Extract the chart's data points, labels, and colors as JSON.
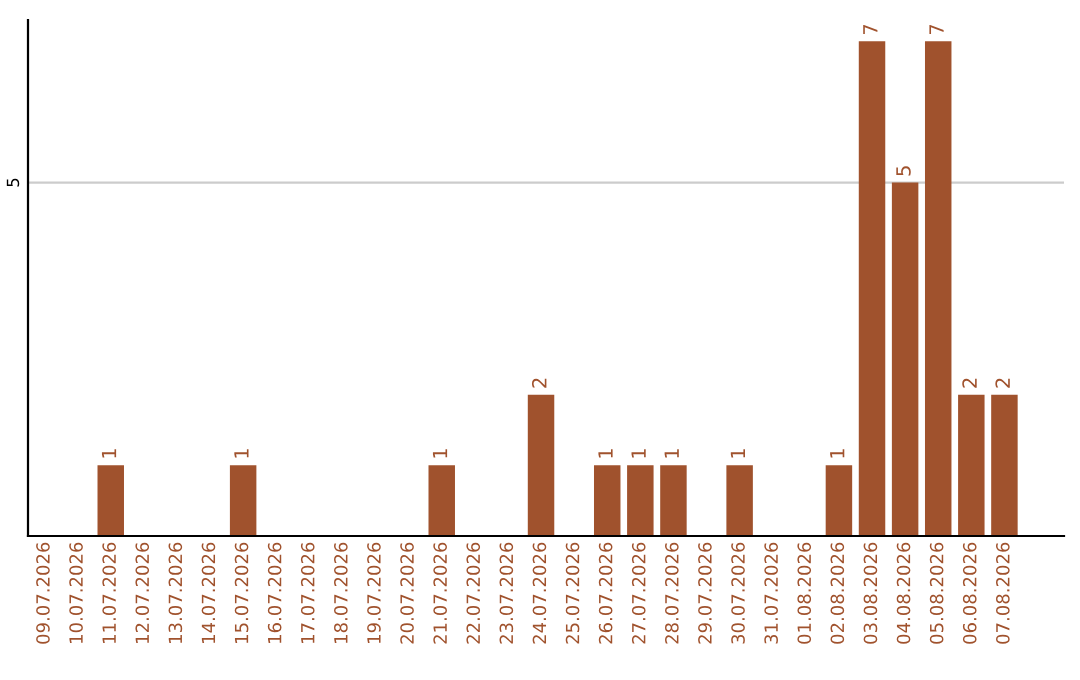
{
  "chart_data": {
    "type": "bar",
    "categories": [
      "09.07.2026",
      "10.07.2026",
      "11.07.2026",
      "12.07.2026",
      "13.07.2026",
      "14.07.2026",
      "15.07.2026",
      "16.07.2026",
      "17.07.2026",
      "18.07.2026",
      "19.07.2026",
      "20.07.2026",
      "21.07.2026",
      "22.07.2026",
      "23.07.2026",
      "24.07.2026",
      "25.07.2026",
      "26.07.2026",
      "27.07.2026",
      "28.07.2026",
      "29.07.2026",
      "30.07.2026",
      "31.07.2026",
      "01.08.2026",
      "02.08.2026",
      "03.08.2026",
      "04.08.2026",
      "05.08.2026",
      "06.08.2026",
      "07.08.2026"
    ],
    "values": [
      0,
      0,
      1,
      0,
      0,
      0,
      1,
      0,
      0,
      0,
      0,
      0,
      1,
      0,
      0,
      2,
      0,
      1,
      1,
      1,
      0,
      1,
      0,
      0,
      1,
      7,
      5,
      7,
      2,
      2
    ],
    "value_labels": [
      null,
      null,
      "1",
      null,
      null,
      null,
      "1",
      null,
      null,
      null,
      null,
      null,
      "1",
      null,
      null,
      "2",
      null,
      "1",
      "1",
      "1",
      null,
      "1",
      null,
      null,
      "1",
      "7",
      "5",
      "7",
      "2",
      "2"
    ],
    "color": "#a0522d",
    "ylim": [
      0,
      7.3
    ],
    "yticks": [
      5
    ],
    "grid": "y"
  }
}
